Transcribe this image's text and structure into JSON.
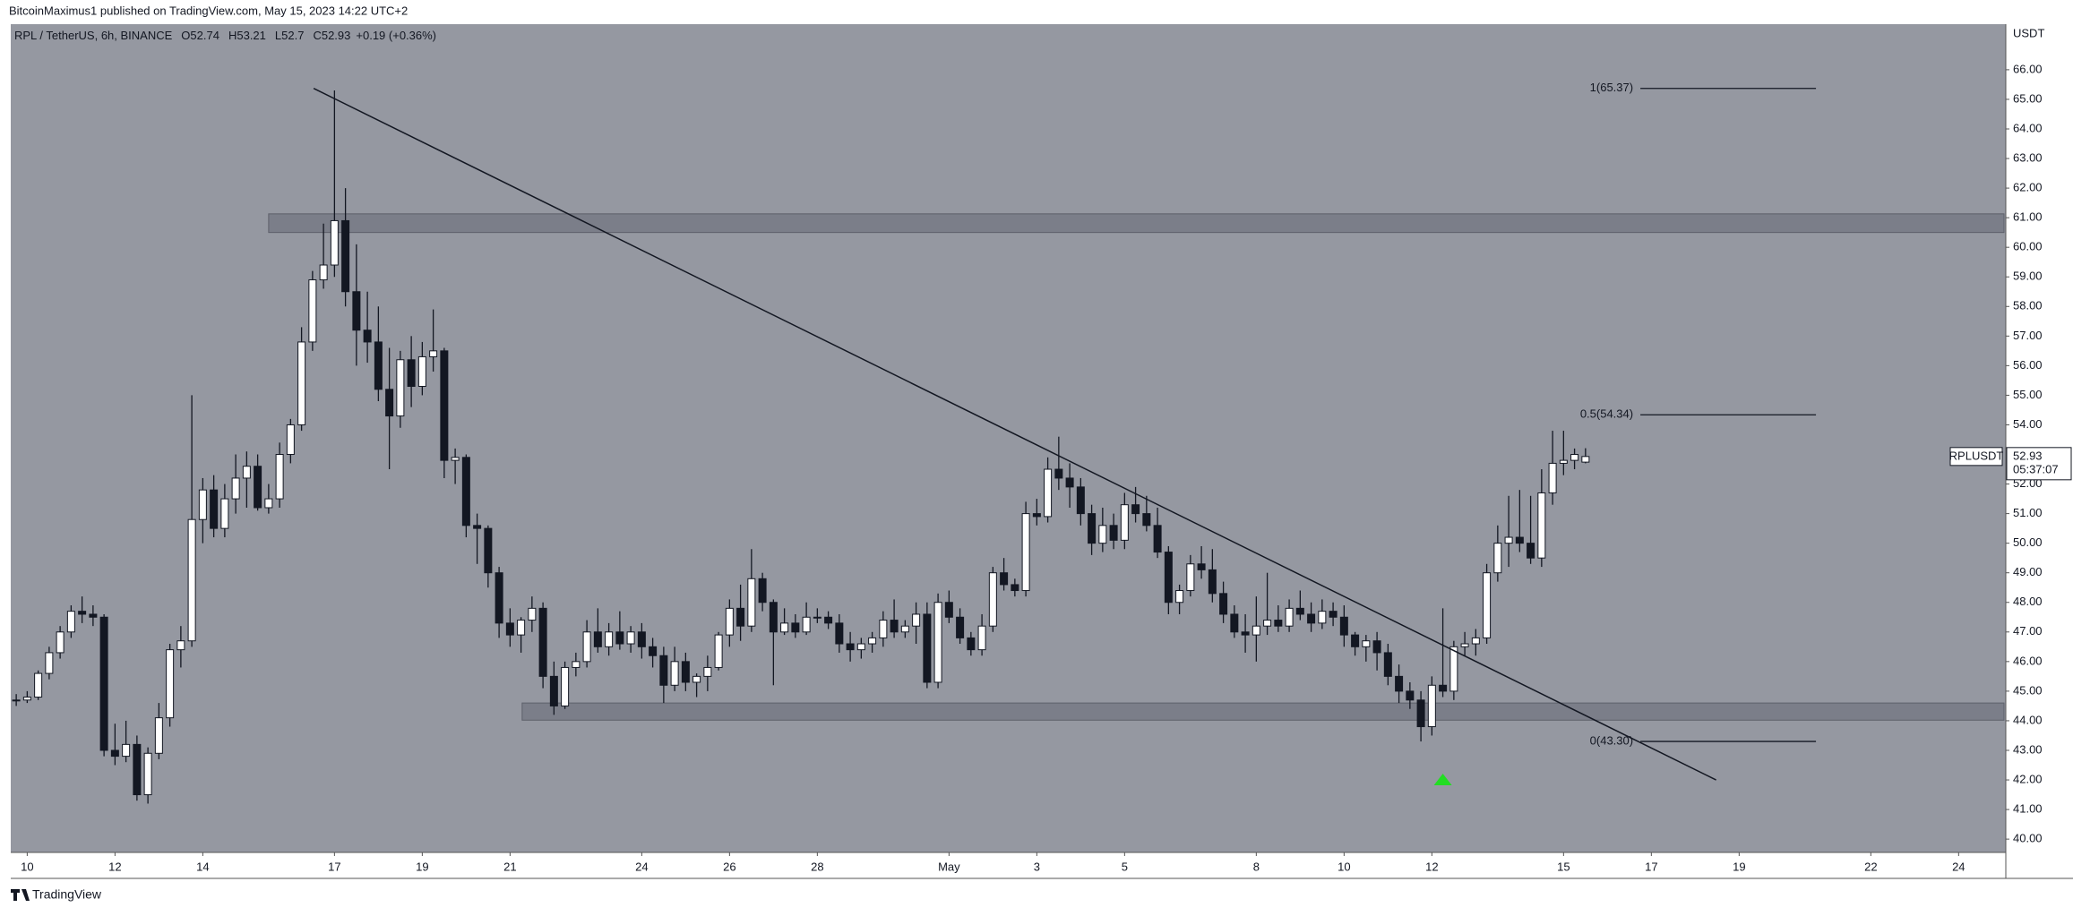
{
  "header": {
    "publisher": "BitcoinMaximus1 published on TradingView.com, May 15, 2023 14:22 UTC+2",
    "footer": "TradingView"
  },
  "chart_data": {
    "type": "candlestick",
    "symbol": "RPL / TetherUS, 6h, BINANCE",
    "quote": [
      {
        "key": "O",
        "value": 52.74
      },
      {
        "key": "H",
        "value": 53.21
      },
      {
        "key": "L",
        "value": 52.7
      },
      {
        "key": "C",
        "value": 52.93
      }
    ],
    "change": "+0.19 (+0.36%)",
    "y_axis_label": "USDT",
    "up_color": "#ffffff",
    "down_color": "#131722",
    "background": "#9598a1",
    "ohlc": [
      [
        44.7,
        44.9,
        44.5,
        44.7
      ],
      [
        44.7,
        45.0,
        44.6,
        44.8
      ],
      [
        44.8,
        45.7,
        44.7,
        45.6
      ],
      [
        45.6,
        46.5,
        45.4,
        46.3
      ],
      [
        46.3,
        47.2,
        46.1,
        47.0
      ],
      [
        47.0,
        47.9,
        46.8,
        47.7
      ],
      [
        47.7,
        48.2,
        47.3,
        47.6
      ],
      [
        47.6,
        47.9,
        47.2,
        47.5
      ],
      [
        47.5,
        47.6,
        42.8,
        43.0
      ],
      [
        43.0,
        43.9,
        42.5,
        42.8
      ],
      [
        42.8,
        44.0,
        42.6,
        43.2
      ],
      [
        43.2,
        43.5,
        41.3,
        41.5
      ],
      [
        41.5,
        43.1,
        41.2,
        42.9
      ],
      [
        42.9,
        44.6,
        42.7,
        44.1
      ],
      [
        44.1,
        46.6,
        43.8,
        46.4
      ],
      [
        46.4,
        47.2,
        45.8,
        46.7
      ],
      [
        46.7,
        55.0,
        46.5,
        50.8
      ],
      [
        50.8,
        52.2,
        50.0,
        51.8
      ],
      [
        51.8,
        52.3,
        50.2,
        50.5
      ],
      [
        50.5,
        52.0,
        50.2,
        51.5
      ],
      [
        51.5,
        53.0,
        51.0,
        52.2
      ],
      [
        52.2,
        53.1,
        51.2,
        52.6
      ],
      [
        52.6,
        53.0,
        51.1,
        51.2
      ],
      [
        51.2,
        52.0,
        51.0,
        51.5
      ],
      [
        51.5,
        53.4,
        51.2,
        53.0
      ],
      [
        53.0,
        54.2,
        52.7,
        54.0
      ],
      [
        54.0,
        57.3,
        53.8,
        56.8
      ],
      [
        56.8,
        59.2,
        56.5,
        58.9
      ],
      [
        58.9,
        60.8,
        58.6,
        59.4
      ],
      [
        59.4,
        65.3,
        59.0,
        60.9
      ],
      [
        60.9,
        62.0,
        58.0,
        58.5
      ],
      [
        58.5,
        60.1,
        56.0,
        57.2
      ],
      [
        57.2,
        58.5,
        56.1,
        56.8
      ],
      [
        56.8,
        58.0,
        54.8,
        55.2
      ],
      [
        55.2,
        56.6,
        52.5,
        54.3
      ],
      [
        54.3,
        56.5,
        53.9,
        56.2
      ],
      [
        56.2,
        57.0,
        54.6,
        55.3
      ],
      [
        55.3,
        56.8,
        55.0,
        56.3
      ],
      [
        56.3,
        57.9,
        55.8,
        56.5
      ],
      [
        56.5,
        56.6,
        52.2,
        52.8
      ],
      [
        52.8,
        53.2,
        52.0,
        52.9
      ],
      [
        52.9,
        53.0,
        50.2,
        50.6
      ],
      [
        50.6,
        51.0,
        49.3,
        50.5
      ],
      [
        50.5,
        50.6,
        48.5,
        49.0
      ],
      [
        49.0,
        49.2,
        46.8,
        47.3
      ],
      [
        47.3,
        47.8,
        46.5,
        46.9
      ],
      [
        46.9,
        47.5,
        46.3,
        47.4
      ],
      [
        47.4,
        48.2,
        47.0,
        47.8
      ],
      [
        47.8,
        48.0,
        45.1,
        45.5
      ],
      [
        45.5,
        46.0,
        44.2,
        44.5
      ],
      [
        44.5,
        46.0,
        44.4,
        45.8
      ],
      [
        45.8,
        46.3,
        45.5,
        46.0
      ],
      [
        46.0,
        47.4,
        45.8,
        47.0
      ],
      [
        47.0,
        47.8,
        46.3,
        46.5
      ],
      [
        46.5,
        47.3,
        46.2,
        47.0
      ],
      [
        47.0,
        47.7,
        46.4,
        46.6
      ],
      [
        46.6,
        47.2,
        46.3,
        47.0
      ],
      [
        47.0,
        47.3,
        46.1,
        46.5
      ],
      [
        46.5,
        46.8,
        45.8,
        46.2
      ],
      [
        46.2,
        46.5,
        44.6,
        45.2
      ],
      [
        45.2,
        46.5,
        45.0,
        46.0
      ],
      [
        46.0,
        46.3,
        45.0,
        45.3
      ],
      [
        45.3,
        45.6,
        44.8,
        45.5
      ],
      [
        45.5,
        46.2,
        45.0,
        45.8
      ],
      [
        45.8,
        47.0,
        45.7,
        46.9
      ],
      [
        46.9,
        48.1,
        46.5,
        47.8
      ],
      [
        47.8,
        48.6,
        46.7,
        47.2
      ],
      [
        47.2,
        49.8,
        47.0,
        48.8
      ],
      [
        48.8,
        49.0,
        47.7,
        48.0
      ],
      [
        48.0,
        48.1,
        45.2,
        47.0
      ],
      [
        47.0,
        47.8,
        46.9,
        47.3
      ],
      [
        47.3,
        47.6,
        46.8,
        47.0
      ],
      [
        47.0,
        48.0,
        46.9,
        47.5
      ],
      [
        47.5,
        47.8,
        47.3,
        47.5
      ],
      [
        47.5,
        47.7,
        47.1,
        47.3
      ],
      [
        47.3,
        47.6,
        46.3,
        46.6
      ],
      [
        46.6,
        47.0,
        46.0,
        46.4
      ],
      [
        46.4,
        46.8,
        46.1,
        46.6
      ],
      [
        46.6,
        47.0,
        46.3,
        46.8
      ],
      [
        46.8,
        47.7,
        46.5,
        47.4
      ],
      [
        47.4,
        48.1,
        46.8,
        47.0
      ],
      [
        47.0,
        47.4,
        46.8,
        47.2
      ],
      [
        47.2,
        48.0,
        46.6,
        47.6
      ],
      [
        47.6,
        48.0,
        45.1,
        45.3
      ],
      [
        45.3,
        48.3,
        45.1,
        48.0
      ],
      [
        48.0,
        48.4,
        47.3,
        47.5
      ],
      [
        47.5,
        47.8,
        46.6,
        46.8
      ],
      [
        46.8,
        47.0,
        46.2,
        46.4
      ],
      [
        46.4,
        47.6,
        46.2,
        47.2
      ],
      [
        47.2,
        49.2,
        47.0,
        49.0
      ],
      [
        49.0,
        49.5,
        48.4,
        48.6
      ],
      [
        48.6,
        48.8,
        48.2,
        48.4
      ],
      [
        48.4,
        51.4,
        48.2,
        51.0
      ],
      [
        51.0,
        51.5,
        50.6,
        50.9
      ],
      [
        50.9,
        52.9,
        50.7,
        52.5
      ],
      [
        52.5,
        53.6,
        51.8,
        52.2
      ],
      [
        52.2,
        52.7,
        51.2,
        51.9
      ],
      [
        51.9,
        52.2,
        50.6,
        51.0
      ],
      [
        51.0,
        51.3,
        49.6,
        50.0
      ],
      [
        50.0,
        51.2,
        49.7,
        50.6
      ],
      [
        50.6,
        51.0,
        49.8,
        50.1
      ],
      [
        50.1,
        51.7,
        49.8,
        51.3
      ],
      [
        51.3,
        51.9,
        50.7,
        51.0
      ],
      [
        51.0,
        51.6,
        50.4,
        50.6
      ],
      [
        50.6,
        51.2,
        49.5,
        49.7
      ],
      [
        49.7,
        49.9,
        47.6,
        48.0
      ],
      [
        48.0,
        48.6,
        47.6,
        48.4
      ],
      [
        48.4,
        49.6,
        48.2,
        49.3
      ],
      [
        49.3,
        49.9,
        48.8,
        49.1
      ],
      [
        49.1,
        49.8,
        48.0,
        48.3
      ],
      [
        48.3,
        48.7,
        47.3,
        47.6
      ],
      [
        47.6,
        47.9,
        46.8,
        47.0
      ],
      [
        47.0,
        47.6,
        46.3,
        46.9
      ],
      [
        46.9,
        48.2,
        46.0,
        47.2
      ],
      [
        47.2,
        49.0,
        46.9,
        47.4
      ],
      [
        47.4,
        47.9,
        47.0,
        47.2
      ],
      [
        47.2,
        48.1,
        47.0,
        47.8
      ],
      [
        47.8,
        48.4,
        47.4,
        47.6
      ],
      [
        47.6,
        48.0,
        47.0,
        47.3
      ],
      [
        47.3,
        48.1,
        47.1,
        47.7
      ],
      [
        47.7,
        48.0,
        47.2,
        47.5
      ],
      [
        47.5,
        47.9,
        46.5,
        46.9
      ],
      [
        46.9,
        47.0,
        46.2,
        46.5
      ],
      [
        46.5,
        46.9,
        46.0,
        46.7
      ],
      [
        46.7,
        47.0,
        45.7,
        46.3
      ],
      [
        46.3,
        46.6,
        45.2,
        45.5
      ],
      [
        45.5,
        45.9,
        44.6,
        45.0
      ],
      [
        45.0,
        45.3,
        44.4,
        44.7
      ],
      [
        44.7,
        45.0,
        43.3,
        43.8
      ],
      [
        43.8,
        45.5,
        43.5,
        45.2
      ],
      [
        45.2,
        47.8,
        44.8,
        45.0
      ],
      [
        45.0,
        46.7,
        44.7,
        46.5
      ],
      [
        46.5,
        47.0,
        46.2,
        46.6
      ],
      [
        46.6,
        47.1,
        46.2,
        46.8
      ],
      [
        46.8,
        49.3,
        46.6,
        49.0
      ],
      [
        49.0,
        50.6,
        48.7,
        50.0
      ],
      [
        50.0,
        51.6,
        49.2,
        50.2
      ],
      [
        50.2,
        51.8,
        49.7,
        50.0
      ],
      [
        50.0,
        51.6,
        49.3,
        49.5
      ],
      [
        49.5,
        52.5,
        49.2,
        51.7
      ],
      [
        51.7,
        53.8,
        51.3,
        52.7
      ],
      [
        52.7,
        53.8,
        52.3,
        52.8
      ],
      [
        52.8,
        53.2,
        52.5,
        53.0
      ],
      [
        52.74,
        53.21,
        52.7,
        52.93
      ]
    ],
    "xlim": [
      -0.5,
      181.3
    ],
    "xticks": [
      {
        "value": 1,
        "label": "10"
      },
      {
        "value": 9,
        "label": "12"
      },
      {
        "value": 17,
        "label": "14"
      },
      {
        "value": 29,
        "label": "17"
      },
      {
        "value": 37,
        "label": "19"
      },
      {
        "value": 45,
        "label": "21"
      },
      {
        "value": 57,
        "label": "24"
      },
      {
        "value": 65,
        "label": "26"
      },
      {
        "value": 73,
        "label": "28"
      },
      {
        "value": 85,
        "label": "May"
      },
      {
        "value": 93,
        "label": "3"
      },
      {
        "value": 101,
        "label": "5"
      },
      {
        "value": 113,
        "label": "8"
      },
      {
        "value": 121,
        "label": "10"
      },
      {
        "value": 129,
        "label": "12"
      },
      {
        "value": 141,
        "label": "15"
      },
      {
        "value": 149,
        "label": "17"
      },
      {
        "value": 157,
        "label": "19"
      },
      {
        "value": 169,
        "label": "22"
      },
      {
        "value": 177,
        "label": "24"
      }
    ],
    "ylim": [
      39.55,
      67.54
    ],
    "yticks": [
      {
        "value": 40,
        "label": "40.00"
      },
      {
        "value": 41,
        "label": "41.00"
      },
      {
        "value": 42,
        "label": "42.00"
      },
      {
        "value": 43,
        "label": "43.00"
      },
      {
        "value": 44,
        "label": "44.00"
      },
      {
        "value": 45,
        "label": "45.00"
      },
      {
        "value": 46,
        "label": "46.00"
      },
      {
        "value": 47,
        "label": "47.00"
      },
      {
        "value": 48,
        "label": "48.00"
      },
      {
        "value": 49,
        "label": "49.00"
      },
      {
        "value": 50,
        "label": "50.00"
      },
      {
        "value": 51,
        "label": "51.00"
      },
      {
        "value": 52,
        "label": "52.00"
      },
      {
        "value": 53,
        "label": "53.00"
      },
      {
        "value": 54,
        "label": "54.00"
      },
      {
        "value": 55,
        "label": "55.00"
      },
      {
        "value": 56,
        "label": "56.00"
      },
      {
        "value": 57,
        "label": "57.00"
      },
      {
        "value": 58,
        "label": "58.00"
      },
      {
        "value": 59,
        "label": "59.00"
      },
      {
        "value": 60,
        "label": "60.00"
      },
      {
        "value": 61,
        "label": "61.00"
      },
      {
        "value": 62,
        "label": "62.00"
      },
      {
        "value": 63,
        "label": "63.00"
      },
      {
        "value": 64,
        "label": "64.00"
      },
      {
        "value": 65,
        "label": "65.00"
      },
      {
        "value": 66,
        "label": "66.00"
      }
    ],
    "zones": [
      {
        "from": 23,
        "low": 60.5,
        "high": 61.13
      },
      {
        "from": 46.1,
        "low": 44.02,
        "high": 44.6
      }
    ],
    "trendline": {
      "from": [
        27.1,
        65.37
      ],
      "to": [
        154.9,
        42.0
      ]
    },
    "fib_levels": [
      {
        "value": 65.37,
        "label": "1(65.37)",
        "from": 148,
        "to": 164
      },
      {
        "value": 54.34,
        "label": "0.5(54.34)",
        "from": 148,
        "to": 164
      },
      {
        "value": 43.3,
        "label": "0(43.30)",
        "from": 148,
        "to": 164
      }
    ],
    "signal": {
      "x": 130,
      "price": 42.0,
      "color": "#22dd22"
    },
    "last_price": {
      "symbol": "RPLUSDT",
      "value": 52.93,
      "countdown": "05:37:07"
    }
  }
}
